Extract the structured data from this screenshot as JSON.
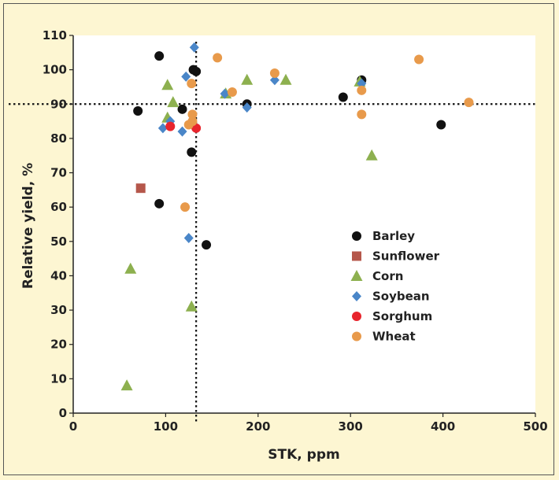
{
  "chart_data": {
    "type": "scatter",
    "title": "",
    "xlabel": "STK, ppm",
    "ylabel": "Relative yield, %",
    "xlim": [
      0,
      500
    ],
    "ylim": [
      0,
      110
    ],
    "x_ticks": [
      0,
      100,
      200,
      300,
      400,
      500
    ],
    "y_ticks": [
      0,
      10,
      20,
      30,
      40,
      50,
      60,
      70,
      80,
      90,
      100,
      110
    ],
    "grid": false,
    "legend_position": "right",
    "reference_lines": [
      {
        "orientation": "horizontal",
        "value": 90,
        "style": "dotted"
      },
      {
        "orientation": "vertical",
        "value": 133,
        "style": "dotted"
      }
    ],
    "series": [
      {
        "name": "Barley",
        "marker": "circle",
        "color": "#111111",
        "points": [
          [
            93,
            104
          ],
          [
            130,
            100
          ],
          [
            133,
            99.5
          ],
          [
            70,
            88
          ],
          [
            118,
            88.5
          ],
          [
            188,
            90
          ],
          [
            292,
            92
          ],
          [
            312,
            97
          ],
          [
            398,
            84
          ],
          [
            128,
            76
          ],
          [
            93,
            61
          ],
          [
            144,
            49
          ]
        ]
      },
      {
        "name": "Sunflower",
        "marker": "square",
        "color": "#b5574b",
        "points": [
          [
            73,
            65.5
          ]
        ]
      },
      {
        "name": "Corn",
        "marker": "triangle",
        "color": "#8db04f",
        "points": [
          [
            102,
            95.5
          ],
          [
            108,
            90.5
          ],
          [
            102,
            86
          ],
          [
            165,
            93
          ],
          [
            188,
            97
          ],
          [
            230,
            97
          ],
          [
            310,
            96.5
          ],
          [
            323,
            75
          ],
          [
            62,
            42
          ],
          [
            128,
            31
          ],
          [
            58,
            8
          ]
        ]
      },
      {
        "name": "Soybean",
        "marker": "diamond",
        "color": "#4a86c8",
        "points": [
          [
            131,
            106.5
          ],
          [
            122,
            98
          ],
          [
            218,
            97
          ],
          [
            164,
            93
          ],
          [
            312,
            96
          ],
          [
            188,
            89
          ],
          [
            97,
            83
          ],
          [
            105,
            85
          ],
          [
            118,
            82
          ],
          [
            125,
            51
          ]
        ]
      },
      {
        "name": "Sorghum",
        "marker": "circle",
        "color": "#e8242c",
        "points": [
          [
            105,
            83.5
          ],
          [
            133,
            83
          ]
        ]
      },
      {
        "name": "Wheat",
        "marker": "circle",
        "color": "#e89a4b",
        "points": [
          [
            156,
            103.5
          ],
          [
            128,
            96
          ],
          [
            218,
            99
          ],
          [
            172,
            93.5
          ],
          [
            374,
            103
          ],
          [
            428,
            90.5
          ],
          [
            312,
            94
          ],
          [
            312,
            87
          ],
          [
            129,
            87
          ],
          [
            129,
            85
          ],
          [
            125,
            84
          ],
          [
            121,
            60
          ]
        ]
      }
    ]
  }
}
